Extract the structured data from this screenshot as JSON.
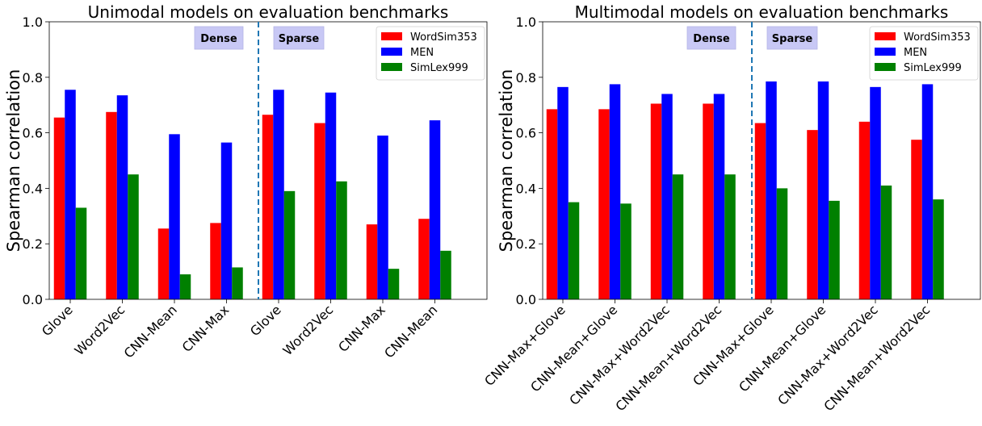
{
  "chart_data": [
    {
      "type": "bar",
      "title": "Unimodal models on evaluation benchmarks",
      "ylabel": "Spearman correlation",
      "xlabel": "",
      "ylim": [
        0,
        1.0
      ],
      "yticks": [
        "0.0",
        "0.2",
        "0.4",
        "0.6",
        "0.8",
        "1.0"
      ],
      "categories": [
        "Glove",
        "Word2Vec",
        "CNN-Mean",
        "CNN-Max",
        "Glove",
        "Word2Vec",
        "CNN-Max",
        "CNN-Mean"
      ],
      "series": [
        {
          "name": "WordSim353",
          "color": "#ff0000",
          "values": [
            0.655,
            0.675,
            0.255,
            0.275,
            0.665,
            0.635,
            0.27,
            0.29
          ]
        },
        {
          "name": "MEN",
          "color": "#0000ff",
          "values": [
            0.755,
            0.735,
            0.595,
            0.565,
            0.755,
            0.745,
            0.59,
            0.645
          ]
        },
        {
          "name": "SimLex999",
          "color": "#008000",
          "values": [
            0.33,
            0.45,
            0.09,
            0.115,
            0.39,
            0.425,
            0.11,
            0.175
          ]
        }
      ],
      "legend_position": "top-right",
      "annotations": [
        "Dense",
        "Sparse"
      ],
      "divider_after_category": 3,
      "grid": false
    },
    {
      "type": "bar",
      "title": "Multimodal models on evaluation benchmarks",
      "ylabel": "Spearman correlation",
      "xlabel": "",
      "ylim": [
        0,
        1.0
      ],
      "yticks": [
        "0.0",
        "0.2",
        "0.4",
        "0.6",
        "0.8",
        "1.0"
      ],
      "categories": [
        "CNN-Max+Glove",
        "CNN-Mean+Glove",
        "CNN-Max+Word2Vec",
        "CNN-Mean+Word2Vec",
        "CNN-Max+Glove",
        "CNN-Mean+Glove",
        "CNN-Max+Word2Vec",
        "CNN-Mean+Word2Vec"
      ],
      "series": [
        {
          "name": "WordSim353",
          "color": "#ff0000",
          "values": [
            0.685,
            0.685,
            0.705,
            0.705,
            0.635,
            0.61,
            0.64,
            0.575
          ]
        },
        {
          "name": "MEN",
          "color": "#0000ff",
          "values": [
            0.765,
            0.775,
            0.74,
            0.74,
            0.785,
            0.785,
            0.765,
            0.775
          ]
        },
        {
          "name": "SimLex999",
          "color": "#008000",
          "values": [
            0.35,
            0.345,
            0.45,
            0.45,
            0.4,
            0.355,
            0.41,
            0.36
          ]
        }
      ],
      "legend_position": "top-right",
      "annotations": [
        "Dense",
        "Sparse"
      ],
      "divider_after_category": 3,
      "grid": false
    }
  ]
}
